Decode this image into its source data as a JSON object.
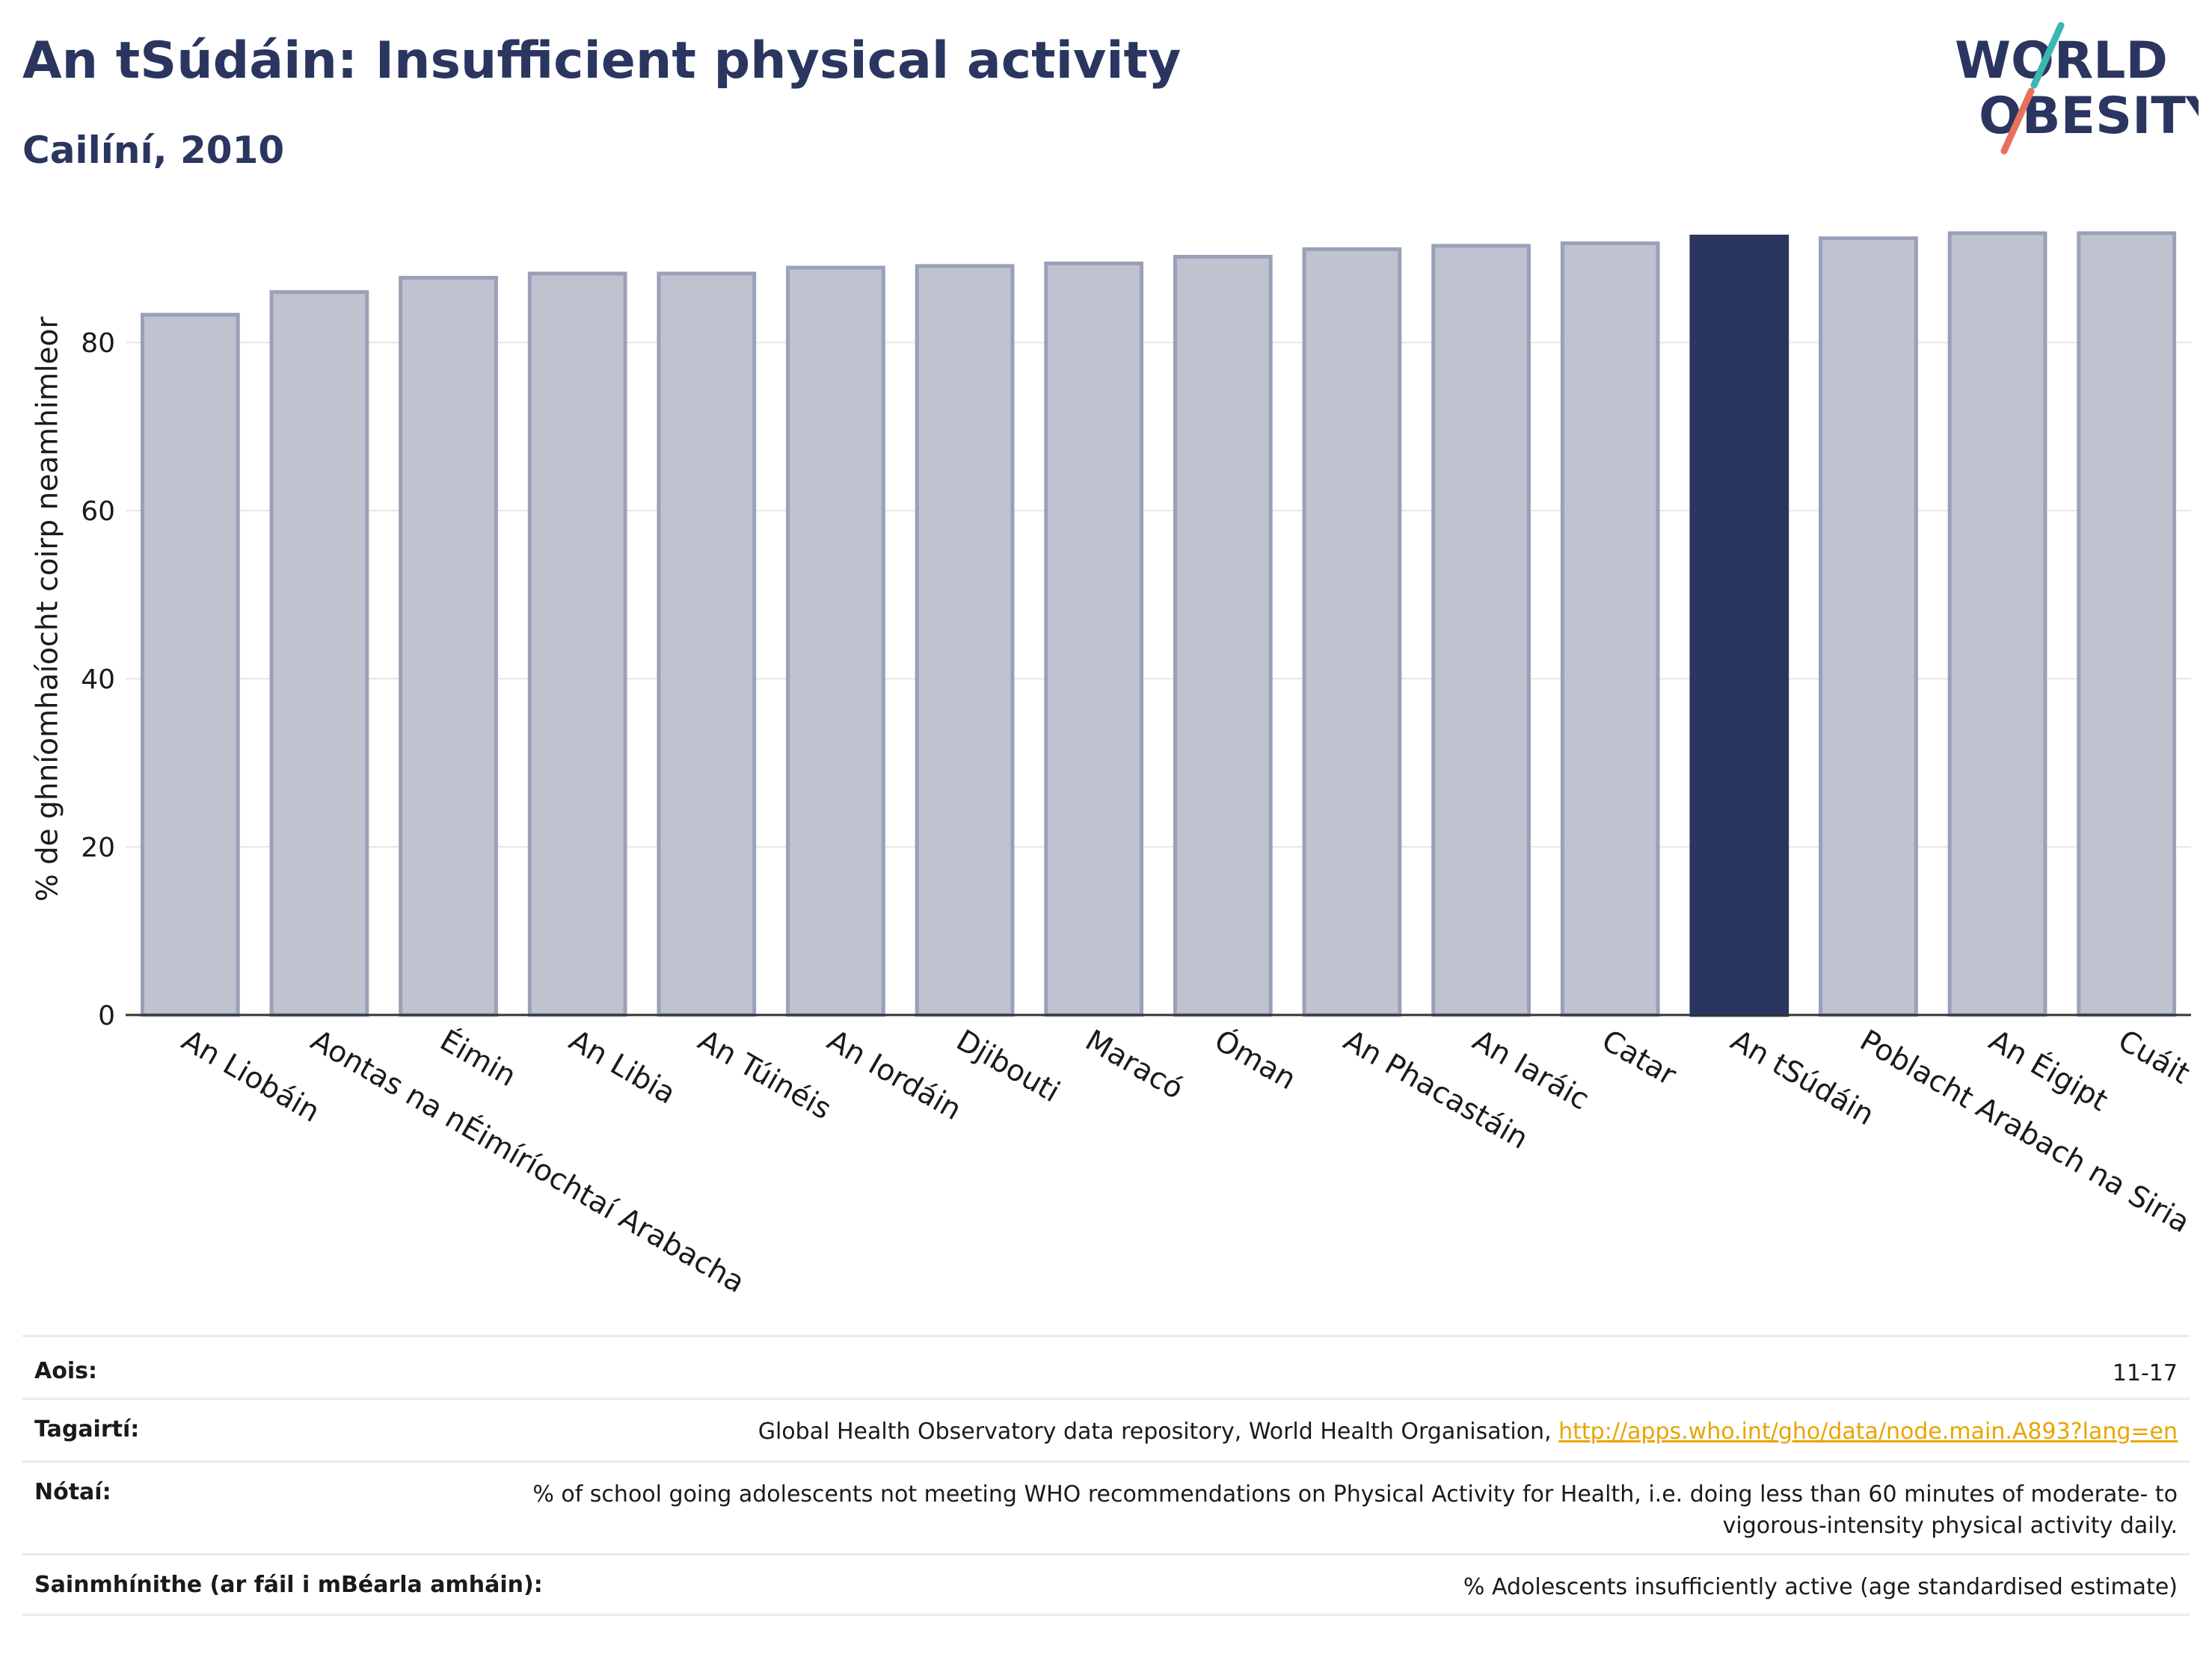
{
  "header": {
    "title": "An tSúdáin: Insufficient physical activity",
    "subtitle": "Cailíní, 2010"
  },
  "logo": {
    "line1": "WORLD",
    "line2": "OBESITY",
    "icon": "world-obesity-logo"
  },
  "colors": {
    "highlight": "#2a3560",
    "bar": "#bfc2cf",
    "bar_border": "#9aa0b8",
    "link": "#e8a400"
  },
  "chart_data": {
    "type": "bar",
    "categories": [
      "An Liobáin",
      "Aontas na nÉimíríochtaí Arabacha",
      "Éimin",
      "An Libia",
      "An Túinéis",
      "An Iordáin",
      "Djibouti",
      "Maracó",
      "Óman",
      "An Phacastáin",
      "An Iaráic",
      "Catar",
      "An tSúdáin",
      "Poblacht Arabach na Siria",
      "An Éigipt",
      "Cuáit"
    ],
    "values": [
      83.3,
      86.0,
      87.7,
      88.2,
      88.2,
      88.9,
      89.1,
      89.4,
      90.2,
      91.1,
      91.5,
      91.8,
      92.6,
      92.4,
      93.0,
      93.0
    ],
    "highlight": "An tSúdáin",
    "ylabel": "% de ghníomhaíocht coirp neamhimleor",
    "xlabel": "",
    "ylim": [
      0,
      93
    ],
    "yticks": [
      0,
      20,
      40,
      60,
      80
    ],
    "grid": true
  },
  "meta": [
    {
      "key": "Aois:",
      "value": "11-17"
    },
    {
      "key": "Tagairtí:",
      "value": "Global Health Observatory data repository, World Health Organisation, ",
      "link": "http://apps.who.int/gho/data/node.main.A893?lang=en"
    },
    {
      "key": "Nótaí:",
      "value": "% of school going adolescents not meeting WHO recommendations on Physical Activity for Health, i.e. doing less than 60 minutes of moderate- to vigorous-intensity physical activity daily."
    },
    {
      "key": "Sainmhínithe (ar fáil i mBéarla amháin):",
      "value": "% Adolescents insufficiently active (age standardised estimate)"
    }
  ]
}
